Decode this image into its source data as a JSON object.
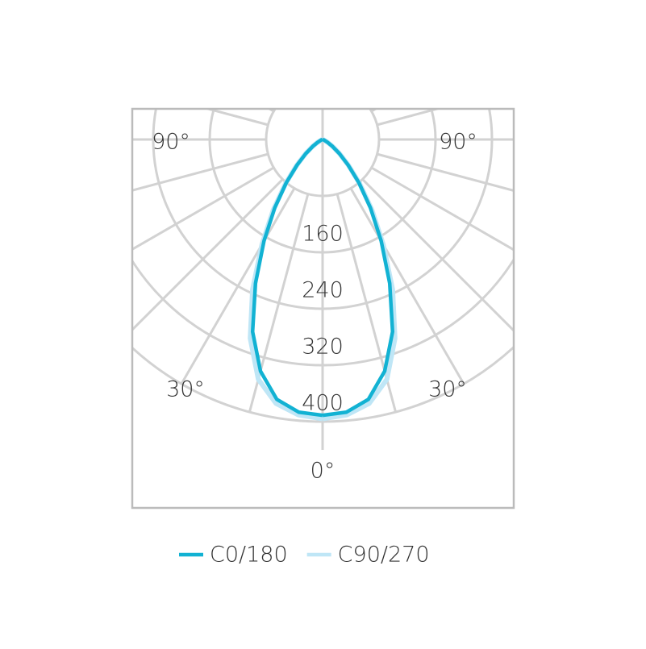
{
  "chart_data": {
    "type": "polar-intensity",
    "angles": [
      0,
      5,
      10,
      15,
      20,
      25,
      30,
      35,
      40,
      45,
      50,
      55,
      60,
      70,
      80,
      90
    ],
    "series": [
      {
        "name": "C90/270",
        "color": "#bfe6f6",
        "values": [
          396,
          392,
          380,
          352,
          300,
          235,
          172,
          122,
          82,
          52,
          32,
          18,
          9,
          2,
          0,
          0
        ]
      },
      {
        "name": "C0/180",
        "color": "#12b2d3",
        "values": [
          391,
          388,
          374,
          340,
          290,
          225,
          166,
          118,
          80,
          51,
          31,
          17,
          8,
          2,
          0,
          0
        ]
      }
    ],
    "rlim": [
      0,
      400
    ],
    "rticks": [
      {
        "value": 80,
        "label": null
      },
      160,
      240,
      320,
      400
    ],
    "thetaticks": [
      0,
      15,
      30,
      45,
      60,
      75,
      90,
      105,
      120,
      135,
      150,
      165,
      180
    ],
    "theta_labels": [
      {
        "value": 90,
        "label": "90°"
      },
      {
        "value": 30,
        "label": "30°"
      },
      {
        "value": 0,
        "label": "0°"
      }
    ],
    "grid": true
  }
}
